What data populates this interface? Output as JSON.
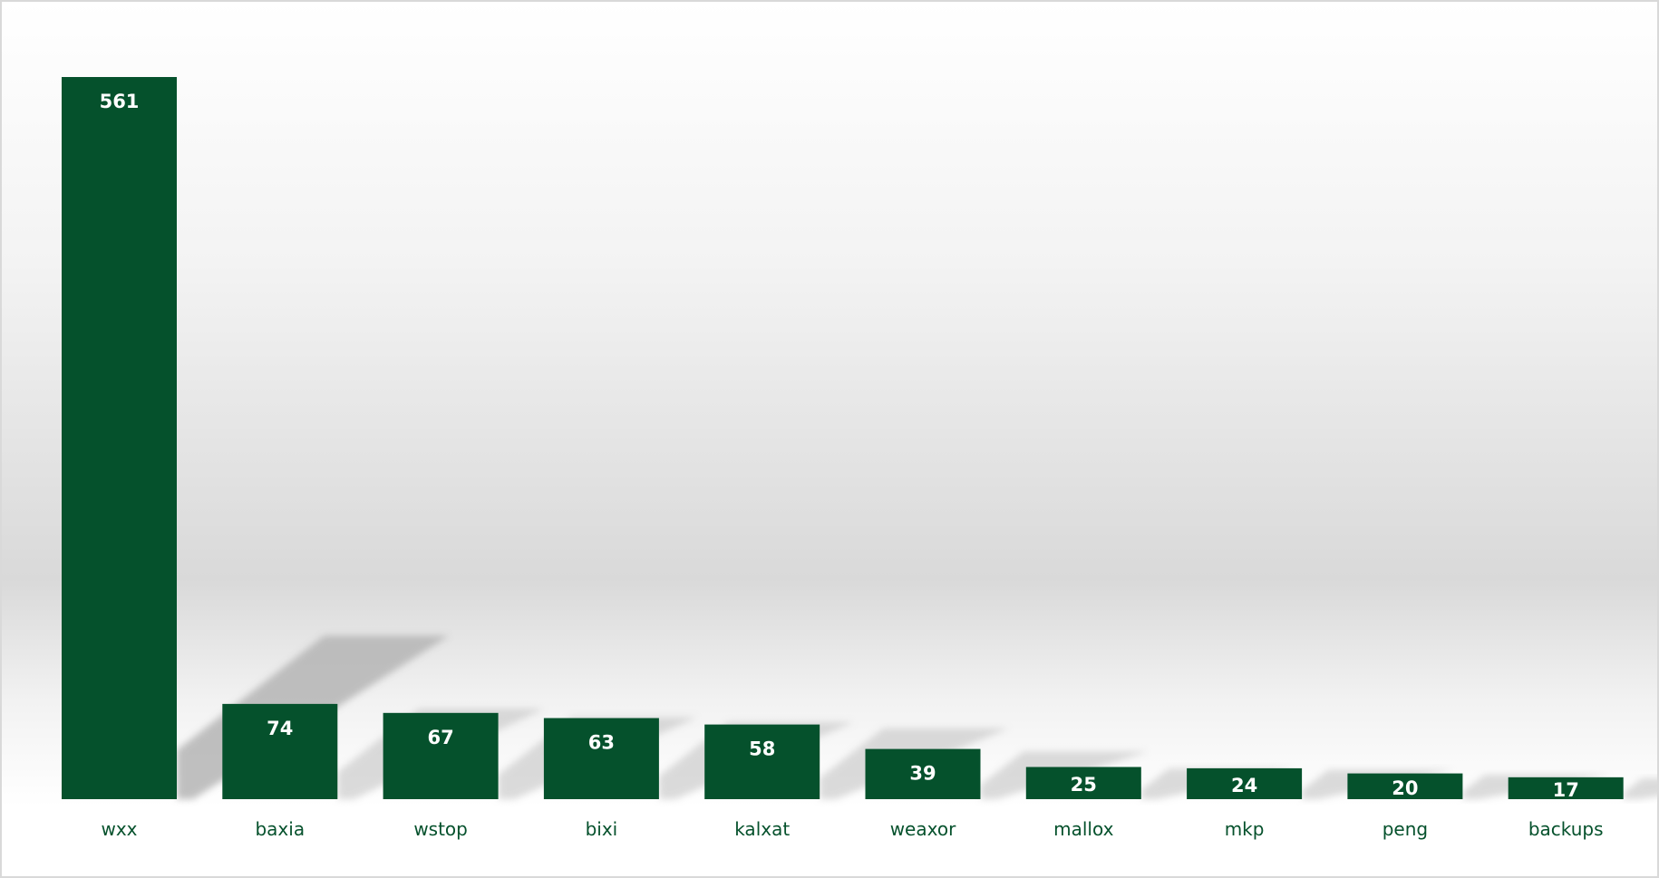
{
  "chart_data": {
    "type": "bar",
    "title": "",
    "xlabel": "",
    "ylabel": "",
    "categories": [
      "wxx",
      "baxia",
      "wstop",
      "bixi",
      "kalxat",
      "weaxor",
      "mallox",
      "mkp",
      "peng",
      "backups"
    ],
    "values": [
      561,
      74,
      67,
      63,
      58,
      39,
      25,
      24,
      20,
      17
    ],
    "data_labels": true,
    "y_axis_visible": false,
    "grid": false,
    "legend": "none",
    "colors": {
      "bar": "#05512c",
      "label_text": "#ffffff",
      "category_text": "#05512c"
    }
  }
}
